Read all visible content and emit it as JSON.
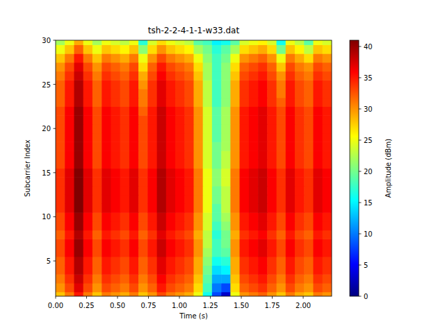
{
  "chart_data": {
    "type": "heatmap",
    "title": "tsh-2-2-4-1-1-w33.dat",
    "xlabel": "Time (s)",
    "ylabel": "Subcarrier Index",
    "xlim": [
      0,
      2.23
    ],
    "ylim": [
      1,
      30
    ],
    "xticks": [
      {
        "value": 0,
        "label": "0.00"
      },
      {
        "value": 0.25,
        "label": "0.25"
      },
      {
        "value": 0.5,
        "label": "0.50"
      },
      {
        "value": 0.75,
        "label": "0.75"
      },
      {
        "value": 1,
        "label": "1.00"
      },
      {
        "value": 1.25,
        "label": "1.25"
      },
      {
        "value": 1.5,
        "label": "1.50"
      },
      {
        "value": 1.75,
        "label": "1.75"
      },
      {
        "value": 2,
        "label": "2.00"
      }
    ],
    "yticks": [
      5,
      10,
      15,
      20,
      25,
      30
    ],
    "x": [
      0,
      0.074,
      0.149,
      0.223,
      0.297,
      0.372,
      0.446,
      0.52,
      0.595,
      0.669,
      0.743,
      0.818,
      0.892,
      0.966,
      1.041,
      1.115,
      1.189,
      1.263,
      1.338,
      1.412,
      1.486,
      1.561,
      1.635,
      1.709,
      1.784,
      1.858,
      1.932,
      2.007,
      2.081,
      2.155
    ],
    "y": [
      1,
      2,
      3,
      4,
      5,
      6,
      7,
      8,
      9,
      10,
      11,
      12,
      13,
      14,
      15,
      16,
      17,
      18,
      19,
      20,
      21,
      22,
      23,
      24,
      25,
      26,
      27,
      28,
      29,
      30
    ],
    "z": [
      [
        28,
        31,
        35,
        31,
        28,
        31,
        30,
        29,
        31,
        28,
        30,
        33,
        31,
        30,
        29,
        25,
        16,
        8,
        3,
        25,
        30,
        31,
        32,
        30,
        28,
        31,
        29,
        28,
        31,
        30
      ],
      [
        30,
        33,
        37,
        33,
        30,
        33,
        32,
        31,
        33,
        30,
        32,
        35,
        33,
        32,
        31,
        27,
        18,
        10,
        8,
        27,
        32,
        33,
        34,
        32,
        30,
        33,
        31,
        30,
        33,
        32
      ],
      [
        31,
        34,
        38,
        34,
        31,
        34,
        33,
        32,
        34,
        31,
        33,
        36,
        34,
        33,
        32,
        28,
        19,
        12,
        12,
        28,
        33,
        34,
        35,
        33,
        31,
        34,
        32,
        31,
        34,
        33
      ],
      [
        32,
        35,
        39,
        35,
        32,
        35,
        34,
        33,
        35,
        32,
        34,
        37,
        35,
        34,
        33,
        29,
        20,
        14,
        15,
        29,
        34,
        35,
        36,
        34,
        32,
        35,
        33,
        32,
        35,
        34
      ],
      [
        32,
        35,
        39,
        35,
        32,
        35,
        34,
        33,
        35,
        32,
        34,
        37,
        35,
        34,
        33,
        29,
        21,
        16,
        17,
        29,
        34,
        35,
        36,
        34,
        32,
        35,
        33,
        32,
        35,
        34
      ],
      [
        33,
        36,
        40,
        36,
        33,
        36,
        35,
        34,
        36,
        33,
        35,
        38,
        36,
        35,
        34,
        30,
        22,
        18,
        19,
        30,
        35,
        36,
        37,
        35,
        33,
        36,
        34,
        33,
        36,
        35
      ],
      [
        33,
        36,
        40,
        36,
        33,
        36,
        35,
        34,
        36,
        33,
        35,
        38,
        36,
        35,
        34,
        30,
        23,
        18,
        20,
        30,
        35,
        36,
        37,
        35,
        33,
        36,
        34,
        33,
        36,
        35
      ],
      [
        32,
        35,
        39,
        35,
        32,
        35,
        34,
        33,
        35,
        32,
        34,
        37,
        35,
        34,
        33,
        29,
        23,
        17,
        20,
        29,
        34,
        35,
        36,
        34,
        32,
        35,
        33,
        32,
        35,
        34
      ],
      [
        33,
        36,
        40,
        36,
        33,
        36,
        35,
        34,
        36,
        33,
        35,
        38,
        36,
        35,
        34,
        30,
        24,
        18,
        21,
        30,
        35,
        36,
        37,
        35,
        33,
        36,
        34,
        33,
        36,
        35
      ],
      [
        33,
        36,
        40,
        36,
        33,
        36,
        35,
        34,
        36,
        33,
        35,
        38,
        36,
        35,
        34,
        30,
        24,
        19,
        22,
        30,
        35,
        36,
        37,
        35,
        33,
        36,
        34,
        33,
        36,
        35
      ],
      [
        34,
        37,
        41,
        37,
        34,
        37,
        36,
        35,
        37,
        34,
        36,
        39,
        37,
        36,
        35,
        31,
        25,
        19,
        23,
        31,
        36,
        37,
        38,
        36,
        34,
        37,
        35,
        34,
        37,
        36
      ],
      [
        34,
        37,
        41,
        37,
        34,
        37,
        36,
        35,
        37,
        34,
        36,
        39,
        37,
        36,
        35,
        31,
        25,
        20,
        23,
        31,
        36,
        37,
        38,
        36,
        34,
        37,
        35,
        34,
        37,
        36
      ],
      [
        34,
        37,
        41,
        37,
        34,
        37,
        36,
        35,
        37,
        34,
        36,
        39,
        37,
        36,
        35,
        31,
        25,
        20,
        23,
        31,
        36,
        37,
        38,
        36,
        34,
        37,
        35,
        34,
        37,
        36
      ],
      [
        34,
        37,
        41,
        37,
        34,
        37,
        36,
        35,
        37,
        34,
        36,
        39,
        37,
        36,
        35,
        31,
        25,
        21,
        24,
        31,
        36,
        37,
        38,
        36,
        34,
        37,
        35,
        34,
        37,
        36
      ],
      [
        34,
        37,
        41,
        37,
        34,
        37,
        36,
        35,
        37,
        34,
        36,
        39,
        37,
        36,
        35,
        31,
        25,
        21,
        24,
        31,
        36,
        37,
        38,
        36,
        34,
        37,
        35,
        34,
        37,
        36
      ],
      [
        33,
        36,
        40,
        36,
        33,
        36,
        35,
        34,
        36,
        33,
        35,
        38,
        36,
        35,
        34,
        30,
        24,
        20,
        23,
        30,
        35,
        36,
        37,
        35,
        33,
        36,
        34,
        33,
        36,
        35
      ],
      [
        33,
        36,
        40,
        36,
        33,
        36,
        35,
        34,
        36,
        33,
        35,
        38,
        36,
        35,
        34,
        30,
        24,
        20,
        23,
        30,
        35,
        36,
        37,
        35,
        33,
        36,
        34,
        33,
        36,
        35
      ],
      [
        33,
        36,
        40,
        36,
        33,
        36,
        35,
        34,
        36,
        33,
        35,
        38,
        36,
        35,
        34,
        30,
        24,
        20,
        22,
        30,
        35,
        36,
        37,
        35,
        33,
        36,
        34,
        33,
        36,
        35
      ],
      [
        33,
        36,
        40,
        36,
        33,
        36,
        35,
        34,
        36,
        33,
        35,
        38,
        36,
        35,
        34,
        30,
        24,
        19,
        22,
        30,
        35,
        36,
        37,
        35,
        33,
        36,
        34,
        33,
        36,
        35
      ],
      [
        33,
        36,
        40,
        36,
        33,
        36,
        35,
        34,
        36,
        33,
        35,
        38,
        36,
        35,
        34,
        30,
        24,
        19,
        22,
        30,
        35,
        36,
        37,
        35,
        33,
        36,
        34,
        33,
        36,
        35
      ],
      [
        33,
        36,
        40,
        36,
        33,
        36,
        35,
        34,
        36,
        33,
        35,
        38,
        36,
        35,
        34,
        30,
        24,
        19,
        22,
        30,
        35,
        36,
        37,
        35,
        33,
        36,
        34,
        33,
        36,
        35
      ],
      [
        33,
        36,
        40,
        36,
        33,
        36,
        35,
        34,
        36,
        32,
        35,
        38,
        36,
        35,
        34,
        30,
        24,
        19,
        22,
        30,
        35,
        36,
        37,
        35,
        33,
        36,
        34,
        33,
        36,
        35
      ],
      [
        32,
        35,
        39,
        35,
        32,
        35,
        34,
        33,
        35,
        31,
        34,
        37,
        35,
        34,
        33,
        29,
        23,
        18,
        21,
        29,
        34,
        35,
        36,
        34,
        32,
        35,
        33,
        32,
        35,
        34
      ],
      [
        32,
        35,
        39,
        35,
        32,
        35,
        34,
        33,
        35,
        31,
        34,
        37,
        35,
        34,
        33,
        29,
        23,
        18,
        21,
        29,
        34,
        35,
        36,
        34,
        31,
        35,
        33,
        32,
        35,
        34
      ],
      [
        32,
        35,
        39,
        35,
        32,
        35,
        34,
        33,
        35,
        30,
        34,
        37,
        35,
        34,
        33,
        29,
        23,
        18,
        21,
        29,
        34,
        35,
        36,
        34,
        31,
        35,
        33,
        32,
        35,
        34
      ],
      [
        31,
        34,
        38,
        34,
        31,
        34,
        33,
        32,
        34,
        29,
        33,
        36,
        34,
        33,
        32,
        28,
        22,
        18,
        21,
        28,
        33,
        34,
        35,
        33,
        30,
        34,
        32,
        31,
        34,
        33
      ],
      [
        30,
        33,
        37,
        33,
        30,
        33,
        32,
        31,
        33,
        27,
        32,
        35,
        33,
        32,
        31,
        27,
        22,
        18,
        21,
        27,
        32,
        33,
        34,
        32,
        28,
        33,
        31,
        30,
        33,
        32
      ],
      [
        28,
        31,
        35,
        31,
        28,
        31,
        30,
        29,
        31,
        25,
        30,
        33,
        31,
        30,
        29,
        25,
        21,
        18,
        20,
        25,
        30,
        31,
        32,
        30,
        25,
        31,
        29,
        27,
        31,
        30
      ],
      [
        25,
        28,
        32,
        28,
        25,
        28,
        27,
        26,
        28,
        21,
        27,
        30,
        28,
        27,
        26,
        22,
        20,
        17,
        19,
        22,
        27,
        28,
        29,
        27,
        20,
        28,
        26,
        23,
        28,
        27
      ],
      [
        22,
        25,
        29,
        25,
        22,
        25,
        24,
        23,
        25,
        17,
        24,
        27,
        25,
        24,
        23,
        19,
        18,
        15,
        16,
        19,
        24,
        25,
        26,
        24,
        16,
        25,
        23,
        19,
        25,
        24
      ]
    ],
    "colorbar": {
      "label": "Amplitude (dBm)",
      "range": [
        0,
        41
      ],
      "ticks": [
        0,
        5,
        10,
        15,
        20,
        25,
        30,
        35,
        40
      ]
    }
  }
}
